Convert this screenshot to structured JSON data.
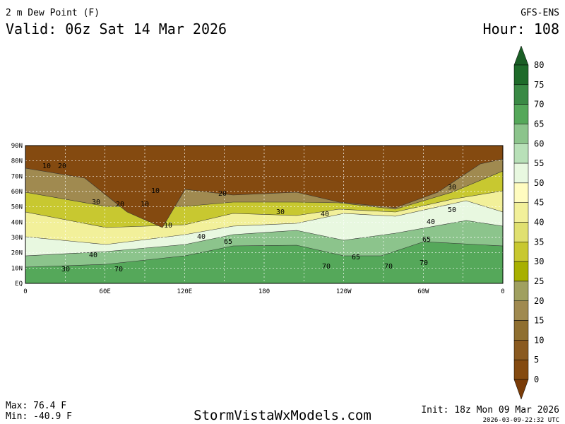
{
  "header": {
    "title": "2 m Dew Point (F)",
    "valid": "Valid: 06z Sat 14 Mar 2026",
    "model": "GFS-ENS",
    "hour": "Hour: 108"
  },
  "map": {
    "lat_labels": [
      "90N",
      "80N",
      "70N",
      "60N",
      "50N",
      "40N",
      "30N",
      "20N",
      "10N",
      "EQ"
    ],
    "lon_labels": [
      "0",
      "60E",
      "120E",
      "180",
      "120W",
      "60W",
      "0"
    ],
    "contour_labels": [
      "10",
      "20",
      "10",
      "20",
      "30",
      "40",
      "30",
      "10",
      "20",
      "10",
      "30",
      "40",
      "65",
      "70",
      "70",
      "65",
      "70",
      "40",
      "50",
      "65",
      "70",
      "30",
      "40"
    ]
  },
  "colorbar": {
    "labels": [
      80,
      75,
      70,
      65,
      60,
      55,
      50,
      45,
      40,
      35,
      30,
      25,
      20,
      15,
      10,
      5,
      0
    ],
    "colors": [
      "#1a5e25",
      "#1e6b2a",
      "#3a8a45",
      "#55a85a",
      "#8cc48c",
      "#b8e0b8",
      "#e8f8e0",
      "#fffcc0",
      "#f2f09a",
      "#e0e070",
      "#c8c830",
      "#a8b000",
      "#a0a060",
      "#a08a50",
      "#8f6f30",
      "#8a5a20",
      "#844a10",
      "#7a3c08"
    ]
  },
  "footer": {
    "max": "Max: 76.4 F",
    "min": "Min: -40.9 F",
    "site": "StormVistaWxModels.com",
    "init": "Init: 18z Mon 09 Mar 2026",
    "stamp": "2026-03-09-22:32 UTC"
  }
}
